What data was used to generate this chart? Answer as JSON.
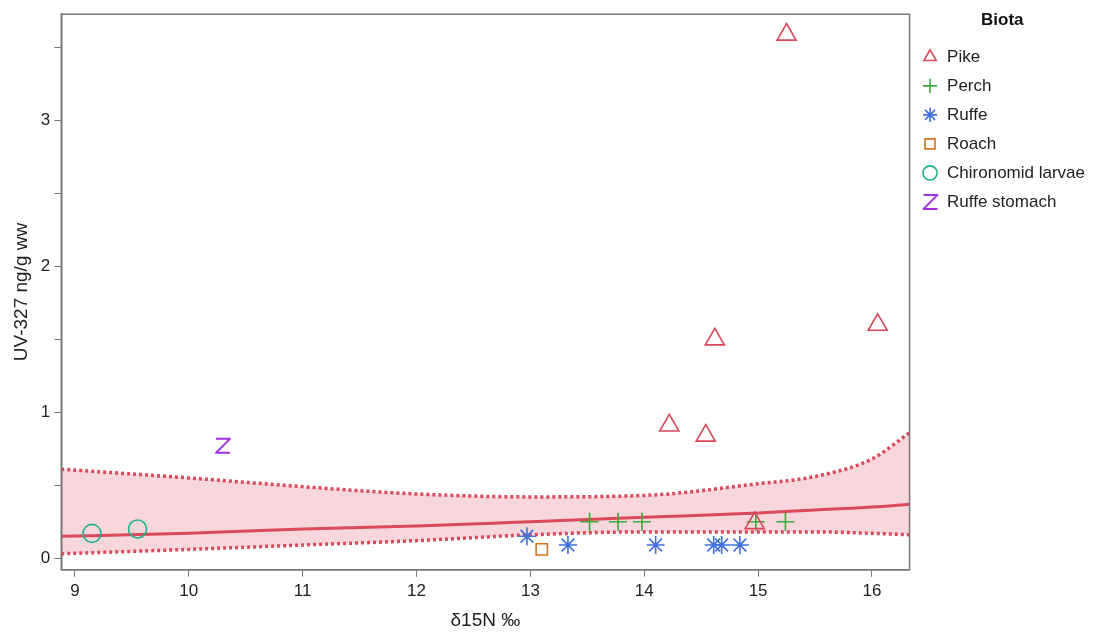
{
  "chart_data": {
    "type": "scatter",
    "xlabel": "δ15N ‰",
    "ylabel": "UV-327 ng/g ww",
    "legend_title": "Biota",
    "legend": "top right",
    "grid": false,
    "xlim": [
      8.88,
      16.33
    ],
    "xticks": [
      9,
      10,
      11,
      12,
      13,
      14,
      15,
      16
    ],
    "ylim": [
      -0.08,
      3.73
    ],
    "yticks": [
      0,
      {
        "value": 0.5,
        "label": null
      },
      1,
      {
        "value": 1.5,
        "label": null
      },
      2,
      {
        "value": 2.5,
        "label": null
      },
      3,
      {
        "value": 3.5,
        "label": null
      }
    ],
    "series": [
      {
        "name": "Pike",
        "color": "#d9465a",
        "marker": "triangle",
        "x": [
          15.25,
          14.62,
          16.05,
          14.22,
          14.54,
          14.97
        ],
        "values": [
          3.59,
          1.5,
          1.6,
          0.91,
          0.84,
          0.24
        ]
      },
      {
        "name": "Perch",
        "color": "#3aaa3a",
        "marker": "cross",
        "x": [
          13.52,
          13.77,
          13.98,
          14.98,
          15.24
        ],
        "values": [
          0.25,
          0.25,
          0.25,
          0.25,
          0.25
        ]
      },
      {
        "name": "Ruffe",
        "color": "#3f6fe0",
        "x": [
          12.97,
          13.33,
          14.1,
          14.61,
          14.68,
          14.84
        ],
        "values": [
          0.15,
          0.09,
          0.09,
          0.09,
          0.09,
          0.09
        ]
      },
      {
        "name": "Roach",
        "color": "#d2741e",
        "marker": "square",
        "x": [
          13.1
        ],
        "values": [
          0.06
        ]
      },
      {
        "name": "Chironomid larvae",
        "color": "#20b08a",
        "marker": "circle",
        "x": [
          9.15,
          9.55
        ],
        "values": [
          0.17,
          0.2
        ]
      },
      {
        "name": "Ruffe stomach",
        "color": "#a030e0",
        "x": [
          10.3
        ],
        "values": [
          0.77
        ]
      },
      {
        "type": "line",
        "color": "#d94a5a",
        "marker": "none",
        "x": [
          8.88,
          10,
          11,
          12,
          13,
          14,
          15,
          15.5,
          16,
          16.33
        ],
        "values": [
          0.15,
          0.17,
          0.2,
          0.22,
          0.25,
          0.28,
          0.31,
          0.33,
          0.35,
          0.37
        ],
        "lower": [
          0.03,
          0.06,
          0.09,
          0.12,
          0.16,
          0.18,
          0.18,
          0.18,
          0.17,
          0.16
        ],
        "upper": [
          0.61,
          0.55,
          0.49,
          0.44,
          0.42,
          0.43,
          0.51,
          0.56,
          0.68,
          0.86
        ]
      },
      {
        "type": "line",
        "color": "#d94a5a",
        "marker": "none",
        "line_style": "dotted",
        "x": [
          8.88,
          10,
          11,
          12,
          13,
          14,
          15,
          15.5,
          16,
          16.33
        ],
        "values": [
          0.61,
          0.55,
          0.49,
          0.44,
          0.42,
          0.43,
          0.51,
          0.56,
          0.68,
          0.86
        ]
      },
      {
        "type": "line",
        "color": "#d94a5a",
        "marker": "none",
        "line_style": "dotted",
        "x": [
          8.88,
          10,
          11,
          12,
          13,
          14,
          15,
          15.5,
          16,
          16.33
        ],
        "values": [
          0.03,
          0.06,
          0.09,
          0.12,
          0.16,
          0.18,
          0.18,
          0.18,
          0.17,
          0.16
        ]
      }
    ]
  }
}
